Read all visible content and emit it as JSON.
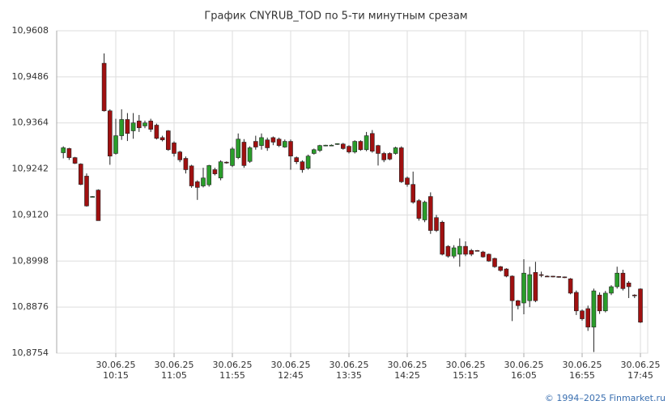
{
  "chart_data": {
    "type": "candlestick",
    "title": "График CNYRUB_TOD по 5-ти минутным срезам",
    "categories": [
      null,
      null,
      null,
      null,
      null,
      null,
      null,
      null,
      null,
      "30.06.25\n10:15",
      null,
      null,
      null,
      null,
      null,
      null,
      null,
      null,
      null,
      "30.06.25\n11:05",
      null,
      null,
      null,
      null,
      null,
      null,
      null,
      null,
      null,
      "30.06.25\n11:55",
      null,
      null,
      null,
      null,
      null,
      null,
      null,
      null,
      null,
      "30.06.25\n12:45",
      null,
      null,
      null,
      null,
      null,
      null,
      null,
      null,
      null,
      "30.06.25\n13:35",
      null,
      null,
      null,
      null,
      null,
      null,
      null,
      null,
      null,
      "30.06.25\n14:25",
      null,
      null,
      null,
      null,
      null,
      null,
      null,
      null,
      null,
      "30.06.25\n15:15",
      null,
      null,
      null,
      null,
      null,
      null,
      null,
      null,
      null,
      "30.06.25\n16:05",
      null,
      null,
      null,
      null,
      null,
      null,
      null,
      null,
      null,
      "30.06.25\n16:55",
      null,
      null,
      null,
      null,
      null,
      null,
      null,
      null,
      null,
      "30.06.25\n17:45"
    ],
    "open": [
      10.9285,
      10.9296,
      10.9272,
      10.9255,
      10.9223,
      10.9169,
      10.9186,
      10.9522,
      10.9396,
      10.9283,
      10.933,
      10.9373,
      10.9343,
      10.9369,
      10.9356,
      10.9369,
      10.9358,
      10.9325,
      10.9343,
      10.9311,
      10.9287,
      10.927,
      10.925,
      10.9208,
      10.9197,
      10.92,
      10.924,
      10.9218,
      10.926,
      10.9251,
      10.9272,
      10.9313,
      10.9262,
      10.9315,
      10.9304,
      10.9319,
      10.9325,
      10.9321,
      10.93,
      10.9315,
      10.9272,
      10.9261,
      10.9244,
      10.9283,
      10.9291,
      10.9304,
      10.9305,
      10.9308,
      10.9308,
      10.9302,
      10.9287,
      10.9315,
      10.9293,
      10.9336,
      10.9304,
      10.9283,
      10.9283,
      10.9283,
      10.9298,
      10.9218,
      10.9201,
      10.9158,
      10.9107,
      10.9169,
      10.9113,
      10.9101,
      10.9037,
      10.9011,
      10.9016,
      10.9037,
      10.9026,
      10.9026,
      10.9022,
      10.9016,
      10.9005,
      10.8983,
      10.8977,
      10.8958,
      10.8893,
      10.8887,
      10.8893,
      10.8968,
      10.8962,
      10.8958,
      10.8958,
      10.8957,
      10.8956,
      10.8951,
      10.8915,
      10.8866,
      10.8872,
      10.8823,
      10.8908,
      10.8866,
      10.8913,
      10.893,
      10.8966,
      10.894,
      10.8908,
      10.8924
    ],
    "high": [
      10.9302,
      10.9298,
      10.9274,
      10.9257,
      10.923,
      10.917,
      10.9188,
      10.9548,
      10.94,
      10.9375,
      10.94,
      10.939,
      10.939,
      10.9385,
      10.937,
      10.9375,
      10.9362,
      10.933,
      10.9345,
      10.9315,
      10.929,
      10.9275,
      10.9253,
      10.9212,
      10.9245,
      10.9253,
      10.9245,
      10.9265,
      10.9262,
      10.93,
      10.9336,
      10.9321,
      10.9302,
      10.933,
      10.9336,
      10.9325,
      10.9328,
      10.9325,
      10.932,
      10.932,
      10.9275,
      10.9265,
      10.928,
      10.9296,
      10.9306,
      10.9306,
      10.9307,
      10.931,
      10.9311,
      10.9305,
      10.9318,
      10.9318,
      10.934,
      10.9345,
      10.9306,
      10.9287,
      10.9286,
      10.9301,
      10.9302,
      10.9222,
      10.9235,
      10.9162,
      10.9158,
      10.918,
      10.912,
      10.9105,
      10.904,
      10.904,
      10.9058,
      10.905,
      10.903,
      10.9027,
      10.9025,
      10.9018,
      10.9007,
      10.8985,
      10.8979,
      10.896,
      10.8895,
      10.9003,
      10.8983,
      10.8996,
      10.897,
      10.896,
      10.8959,
      10.8958,
      10.8957,
      10.8953,
      10.892,
      10.887,
      10.888,
      10.8925,
      10.8915,
      10.8919,
      10.8934,
      10.8983,
      10.8975,
      10.8945,
      10.891,
      10.8926
    ],
    "low": [
      10.927,
      10.9266,
      10.9255,
      10.9199,
      10.9142,
      10.9168,
      10.9105,
      10.9394,
      10.9253,
      10.928,
      10.9319,
      10.9316,
      10.9322,
      10.934,
      10.935,
      10.934,
      10.932,
      10.9315,
      10.929,
      10.9275,
      10.926,
      10.923,
      10.9192,
      10.916,
      10.9193,
      10.9195,
      10.9225,
      10.9212,
      10.9256,
      10.9247,
      10.9268,
      10.9245,
      10.9258,
      10.9293,
      10.9293,
      10.929,
      10.9305,
      10.93,
      10.9298,
      10.924,
      10.9255,
      10.9232,
      10.924,
      10.928,
      10.9287,
      10.9302,
      10.9303,
      10.9306,
      10.9293,
      10.9283,
      10.9283,
      10.929,
      10.9289,
      10.9285,
      10.9251,
      10.926,
      10.9265,
      10.928,
      10.9205,
      10.9195,
      10.915,
      10.9105,
      10.9101,
      10.907,
      10.9075,
      10.9013,
      10.9007,
      10.9005,
      10.8983,
      10.9011,
      10.9011,
      10.9024,
      10.9007,
      10.8996,
      10.898,
      10.897,
      10.8955,
      10.8839,
      10.887,
      10.8857,
      10.8876,
      10.8889,
      10.8955,
      10.8956,
      10.8955,
      10.8954,
      10.8953,
      10.891,
      10.8855,
      10.884,
      10.8813,
      10.8757,
      10.8858,
      10.8862,
      10.8908,
      10.8925,
      10.892,
      10.89,
      10.89,
      10.8834
    ],
    "close": [
      10.9298,
      10.9272,
      10.9257,
      10.9201,
      10.9144,
      10.9169,
      10.9105,
      10.9396,
      10.9276,
      10.933,
      10.9373,
      10.9336,
      10.9364,
      10.9351,
      10.9364,
      10.9347,
      10.9323,
      10.9319,
      10.9293,
      10.9283,
      10.9266,
      10.924,
      10.9197,
      10.9193,
      10.9218,
      10.9251,
      10.9229,
      10.9261,
      10.9258,
      10.9295,
      10.9321,
      10.9251,
      10.9298,
      10.93,
      10.9325,
      10.9298,
      10.9313,
      10.9304,
      10.9315,
      10.9276,
      10.9261,
      10.924,
      10.9276,
      10.9293,
      10.9304,
      10.9305,
      10.9305,
      10.9309,
      10.9296,
      10.9287,
      10.9315,
      10.9293,
      10.933,
      10.9289,
      10.9283,
      10.9266,
      10.9268,
      10.9298,
      10.9208,
      10.9201,
      10.9154,
      10.9111,
      10.9154,
      10.9079,
      10.9079,
      10.9016,
      10.9011,
      10.9033,
      10.9037,
      10.9016,
      10.9016,
      10.9025,
      10.9009,
      10.8998,
      10.8983,
      10.8973,
      10.8958,
      10.8893,
      10.888,
      10.8966,
      10.8962,
      10.8893,
      10.896,
      10.8957,
      10.8957,
      10.8956,
      10.8955,
      10.8913,
      10.8866,
      10.8845,
      10.8823,
      10.8919,
      10.8866,
      10.8913,
      10.893,
      10.8966,
      10.8925,
      10.893,
      10.8907,
      10.8836
    ],
    "up_color": "#2a9d2a",
    "down_color": "#a01010",
    "ylim": [
      10.8754,
      10.9608
    ],
    "yticks": [
      {
        "value": 10.8754,
        "label": "10,8754"
      },
      {
        "value": 10.8876,
        "label": "10,8876"
      },
      {
        "value": 10.8998,
        "label": "10,8998"
      },
      {
        "value": 10.912,
        "label": "10,9120"
      },
      {
        "value": 10.9242,
        "label": "10,9242"
      },
      {
        "value": 10.9364,
        "label": "10,9364"
      },
      {
        "value": 10.9486,
        "label": "10,9486"
      },
      {
        "value": 10.9608,
        "label": "10,9608"
      }
    ],
    "grid": true
  },
  "footer": "© 1994–2025 Finmarket.ru"
}
